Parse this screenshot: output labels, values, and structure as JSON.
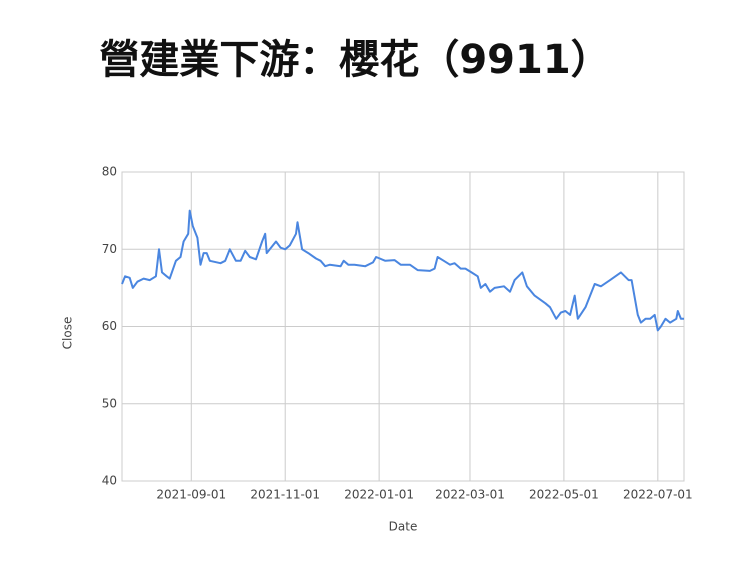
{
  "chart_data": {
    "type": "line",
    "title": "營建業下游：櫻花（9911）",
    "x_label": "Date",
    "y_label": "Close",
    "x": [
      "2021-07-18",
      "2021-07-20",
      "2021-07-23",
      "2021-07-25",
      "2021-07-28",
      "2021-08-01",
      "2021-08-05",
      "2021-08-09",
      "2021-08-11",
      "2021-08-13",
      "2021-08-16",
      "2021-08-18",
      "2021-08-22",
      "2021-08-25",
      "2021-08-27",
      "2021-08-30",
      "2021-08-31",
      "2021-09-02",
      "2021-09-05",
      "2021-09-07",
      "2021-09-09",
      "2021-09-11",
      "2021-09-13",
      "2021-09-20",
      "2021-09-23",
      "2021-09-26",
      "2021-09-30",
      "2021-10-03",
      "2021-10-06",
      "2021-10-09",
      "2021-10-13",
      "2021-10-17",
      "2021-10-19",
      "2021-10-20",
      "2021-10-22",
      "2021-10-26",
      "2021-10-29",
      "2021-11-01",
      "2021-11-04",
      "2021-11-08",
      "2021-11-09",
      "2021-11-12",
      "2021-11-16",
      "2021-11-21",
      "2021-11-24",
      "2021-11-27",
      "2021-11-30",
      "2021-12-07",
      "2021-12-09",
      "2021-12-12",
      "2021-12-16",
      "2021-12-23",
      "2021-12-28",
      "2021-12-30",
      "2022-01-05",
      "2022-01-11",
      "2022-01-15",
      "2022-01-21",
      "2022-01-26",
      "2022-02-03",
      "2022-02-06",
      "2022-02-08",
      "2022-02-12",
      "2022-02-16",
      "2022-02-19",
      "2022-02-23",
      "2022-02-26",
      "2022-03-02",
      "2022-03-06",
      "2022-03-08",
      "2022-03-11",
      "2022-03-14",
      "2022-03-17",
      "2022-03-23",
      "2022-03-27",
      "2022-03-30",
      "2022-04-04",
      "2022-04-07",
      "2022-04-12",
      "2022-04-19",
      "2022-04-22",
      "2022-04-26",
      "2022-04-29",
      "2022-05-02",
      "2022-05-05",
      "2022-05-08",
      "2022-05-10",
      "2022-05-15",
      "2022-05-18",
      "2022-05-21",
      "2022-05-25",
      "2022-05-31",
      "2022-06-07",
      "2022-06-12",
      "2022-06-14",
      "2022-06-18",
      "2022-06-20",
      "2022-06-23",
      "2022-06-26",
      "2022-06-29",
      "2022-07-01",
      "2022-07-03",
      "2022-07-06",
      "2022-07-09",
      "2022-07-13",
      "2022-07-14",
      "2022-07-16",
      "2022-07-18"
    ],
    "values": [
      65.5,
      66.5,
      66.3,
      65,
      65.8,
      66.2,
      66,
      66.5,
      70,
      67,
      66.5,
      66.2,
      68.5,
      69,
      71,
      72,
      75,
      73,
      71.5,
      68,
      69.5,
      69.5,
      68.5,
      68.2,
      68.5,
      70,
      68.5,
      68.5,
      69.8,
      69,
      68.7,
      71,
      72,
      69.5,
      70,
      71,
      70.2,
      70,
      70.5,
      72,
      73.5,
      70,
      69.5,
      68.8,
      68.5,
      67.8,
      68,
      67.8,
      68.5,
      68,
      68,
      67.8,
      68.3,
      69,
      68.5,
      68.6,
      68,
      68,
      67.3,
      67.2,
      67.5,
      69,
      68.5,
      68,
      68.2,
      67.5,
      67.5,
      67,
      66.5,
      65,
      65.5,
      64.5,
      65,
      65.2,
      64.5,
      66,
      67,
      65.2,
      64,
      63,
      62.5,
      61,
      61.8,
      62,
      61.5,
      64,
      61,
      62.5,
      64,
      65.5,
      65.2,
      66,
      67,
      66,
      66,
      61.5,
      60.5,
      61,
      61,
      61.5,
      59.5,
      60,
      61,
      60.5,
      61,
      62,
      61,
      61
    ],
    "color": "#4a86e0",
    "xlim": [
      "2021-07-18",
      "2022-07-18"
    ],
    "xticks": [
      "2021-09-01",
      "2021-11-01",
      "2022-01-01",
      "2022-03-01",
      "2022-05-01",
      "2022-07-01"
    ],
    "ylim": [
      40,
      80
    ],
    "yticks": [
      40,
      50,
      60,
      70,
      80
    ],
    "grid": true
  }
}
